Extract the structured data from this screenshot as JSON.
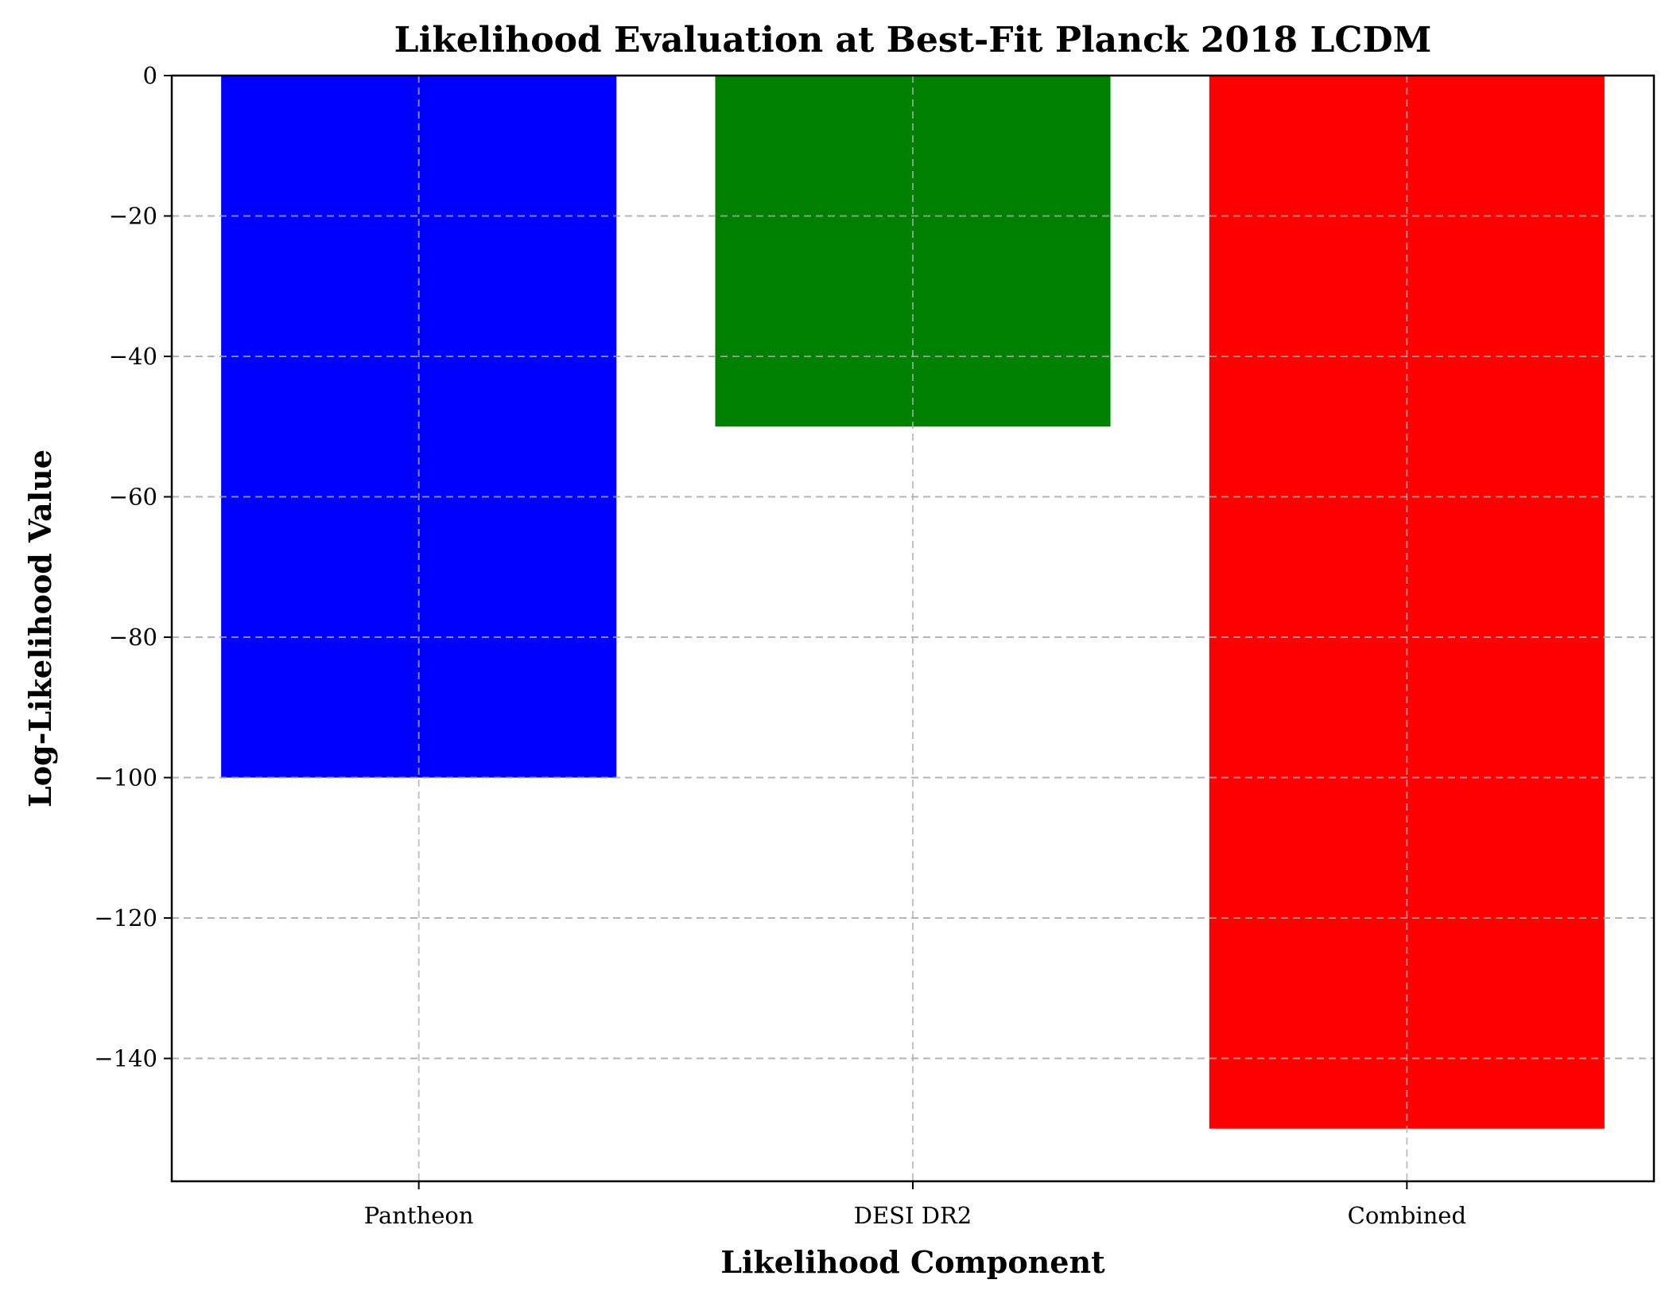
{
  "chart_data": {
    "type": "bar",
    "title": "Likelihood Evaluation at Best-Fit Planck 2018 LCDM",
    "xlabel": "Likelihood Component",
    "ylabel": "Log-Likelihood Value",
    "categories": [
      "Pantheon",
      "DESI DR2",
      "Combined"
    ],
    "values": [
      -100,
      -50,
      -150
    ],
    "colors": [
      "#0000ff",
      "#008000",
      "#ff0000"
    ],
    "ylim": [
      -157.5,
      0
    ],
    "yticks": [
      0,
      -20,
      -40,
      -60,
      -80,
      -100,
      -120,
      -140
    ],
    "ytick_labels": [
      "0",
      "−20",
      "−40",
      "−60",
      "−80",
      "−100",
      "−120",
      "−140"
    ],
    "grid": true,
    "legend": "none"
  }
}
